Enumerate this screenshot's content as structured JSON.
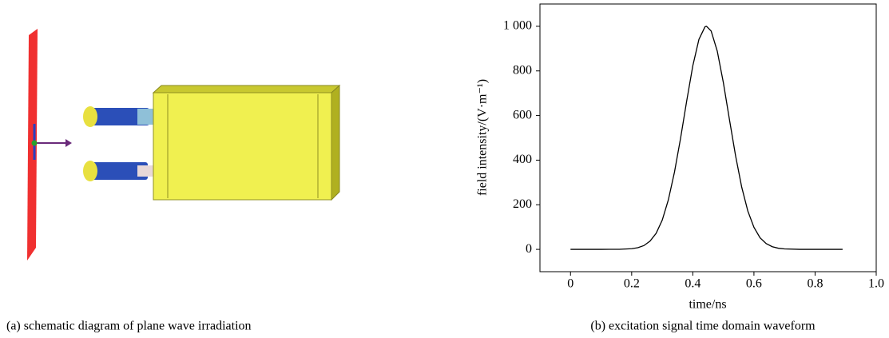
{
  "figure": {
    "caption_a": "(a) schematic diagram of plane wave irradiation"
  },
  "chart_data": {
    "type": "line",
    "caption": "(b) excitation signal time domain waveform",
    "xlabel": "time/ns",
    "ylabel": "field intensity/(V·m⁻¹)",
    "x": [
      0,
      0.1,
      0.16,
      0.2,
      0.22,
      0.24,
      0.26,
      0.28,
      0.3,
      0.32,
      0.34,
      0.36,
      0.38,
      0.4,
      0.42,
      0.44,
      0.445,
      0.46,
      0.48,
      0.5,
      0.52,
      0.54,
      0.56,
      0.58,
      0.6,
      0.62,
      0.64,
      0.66,
      0.68,
      0.7,
      0.75,
      0.8,
      0.89
    ],
    "values": [
      0,
      0,
      0.4,
      3,
      7.6,
      17,
      37,
      72,
      131,
      222,
      346,
      498,
      665,
      823,
      941,
      998,
      1000,
      979,
      889,
      747,
      581,
      419,
      279,
      172,
      99,
      52,
      26,
      12,
      5,
      2,
      0,
      0,
      0
    ],
    "color": "#000000",
    "xlim": [
      -0.1,
      1.0
    ],
    "ylim": [
      -100,
      1100
    ],
    "xticks": [
      0,
      0.2,
      0.4,
      0.6,
      0.8,
      {
        "value": 1,
        "label": "1.0"
      }
    ],
    "yticks": [
      0,
      200,
      400,
      600,
      800,
      {
        "value": 1000,
        "label": "1 000"
      }
    ]
  }
}
